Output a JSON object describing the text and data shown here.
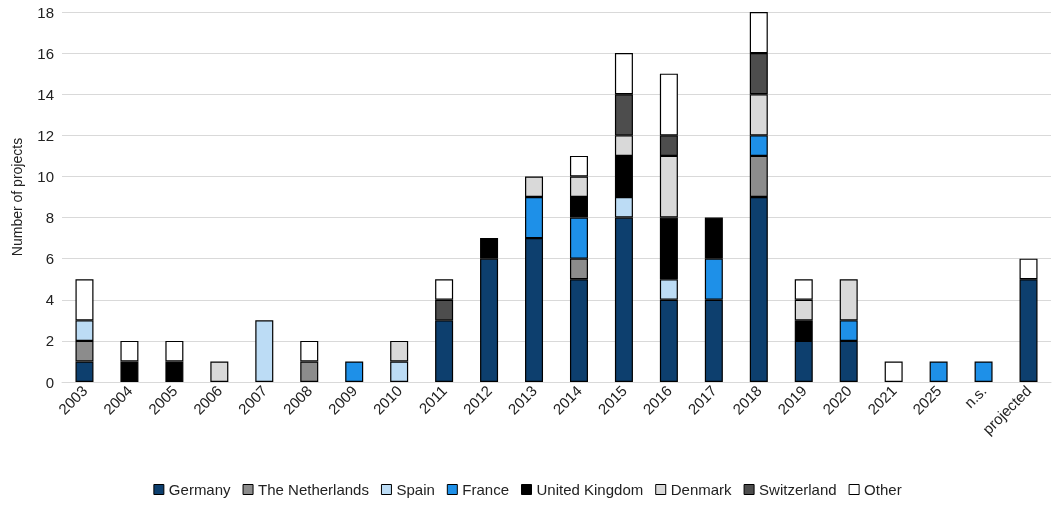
{
  "chart_data": {
    "type": "bar",
    "stacked": true,
    "ylabel": "Number of projects",
    "categories": [
      "2003",
      "2004",
      "2005",
      "2006",
      "2007",
      "2008",
      "2009",
      "2010",
      "2011",
      "2012",
      "2013",
      "2014",
      "2015",
      "2016",
      "2017",
      "2018",
      "2019",
      "2020",
      "2021",
      "2025",
      "n.s.",
      "projected"
    ],
    "series": [
      {
        "name": "Germany",
        "color": "#0d3f6e",
        "values": [
          1,
          null,
          null,
          null,
          null,
          null,
          null,
          null,
          3,
          6,
          7,
          5,
          8,
          4,
          4,
          9,
          2,
          2,
          null,
          null,
          null,
          5
        ]
      },
      {
        "name": "The Netherlands",
        "color": "#8c8c8c",
        "values": [
          1,
          null,
          null,
          null,
          null,
          1,
          null,
          null,
          null,
          null,
          null,
          1,
          null,
          null,
          null,
          2,
          null,
          null,
          null,
          null,
          null,
          null
        ]
      },
      {
        "name": "Spain",
        "color": "#bcdcf5",
        "values": [
          1,
          null,
          null,
          null,
          3,
          null,
          null,
          1,
          null,
          null,
          null,
          null,
          1,
          1,
          null,
          null,
          null,
          null,
          null,
          null,
          null,
          null
        ]
      },
      {
        "name": "France",
        "color": "#1e90e8",
        "values": [
          null,
          null,
          null,
          null,
          null,
          null,
          1,
          null,
          null,
          null,
          2,
          2,
          null,
          null,
          2,
          1,
          null,
          1,
          null,
          1,
          1,
          null
        ]
      },
      {
        "name": "United Kingdom",
        "color": "#000000",
        "values": [
          null,
          1,
          1,
          null,
          null,
          null,
          null,
          null,
          null,
          1,
          null,
          1,
          2,
          3,
          2,
          null,
          1,
          null,
          null,
          null,
          null,
          null
        ]
      },
      {
        "name": "Denmark",
        "color": "#d9d9d9",
        "values": [
          null,
          null,
          null,
          1,
          null,
          null,
          null,
          1,
          null,
          null,
          1,
          1,
          1,
          3,
          null,
          2,
          1,
          2,
          null,
          null,
          null,
          null
        ]
      },
      {
        "name": "Switzerland",
        "color": "#4d4d4d",
        "values": [
          null,
          null,
          null,
          null,
          null,
          null,
          null,
          null,
          1,
          null,
          null,
          null,
          2,
          1,
          null,
          2,
          null,
          null,
          null,
          null,
          null,
          null
        ]
      },
      {
        "name": "Other",
        "color": "#ffffff",
        "values": [
          2,
          1,
          1,
          null,
          null,
          1,
          null,
          null,
          1,
          null,
          null,
          1,
          2,
          3,
          null,
          2,
          1,
          null,
          1,
          null,
          null,
          1
        ]
      }
    ],
    "ylim": [
      0,
      18
    ],
    "yticks": [
      0,
      2,
      4,
      6,
      8,
      10,
      12,
      14,
      16,
      18
    ],
    "grid": "y",
    "legend": "bottom"
  }
}
